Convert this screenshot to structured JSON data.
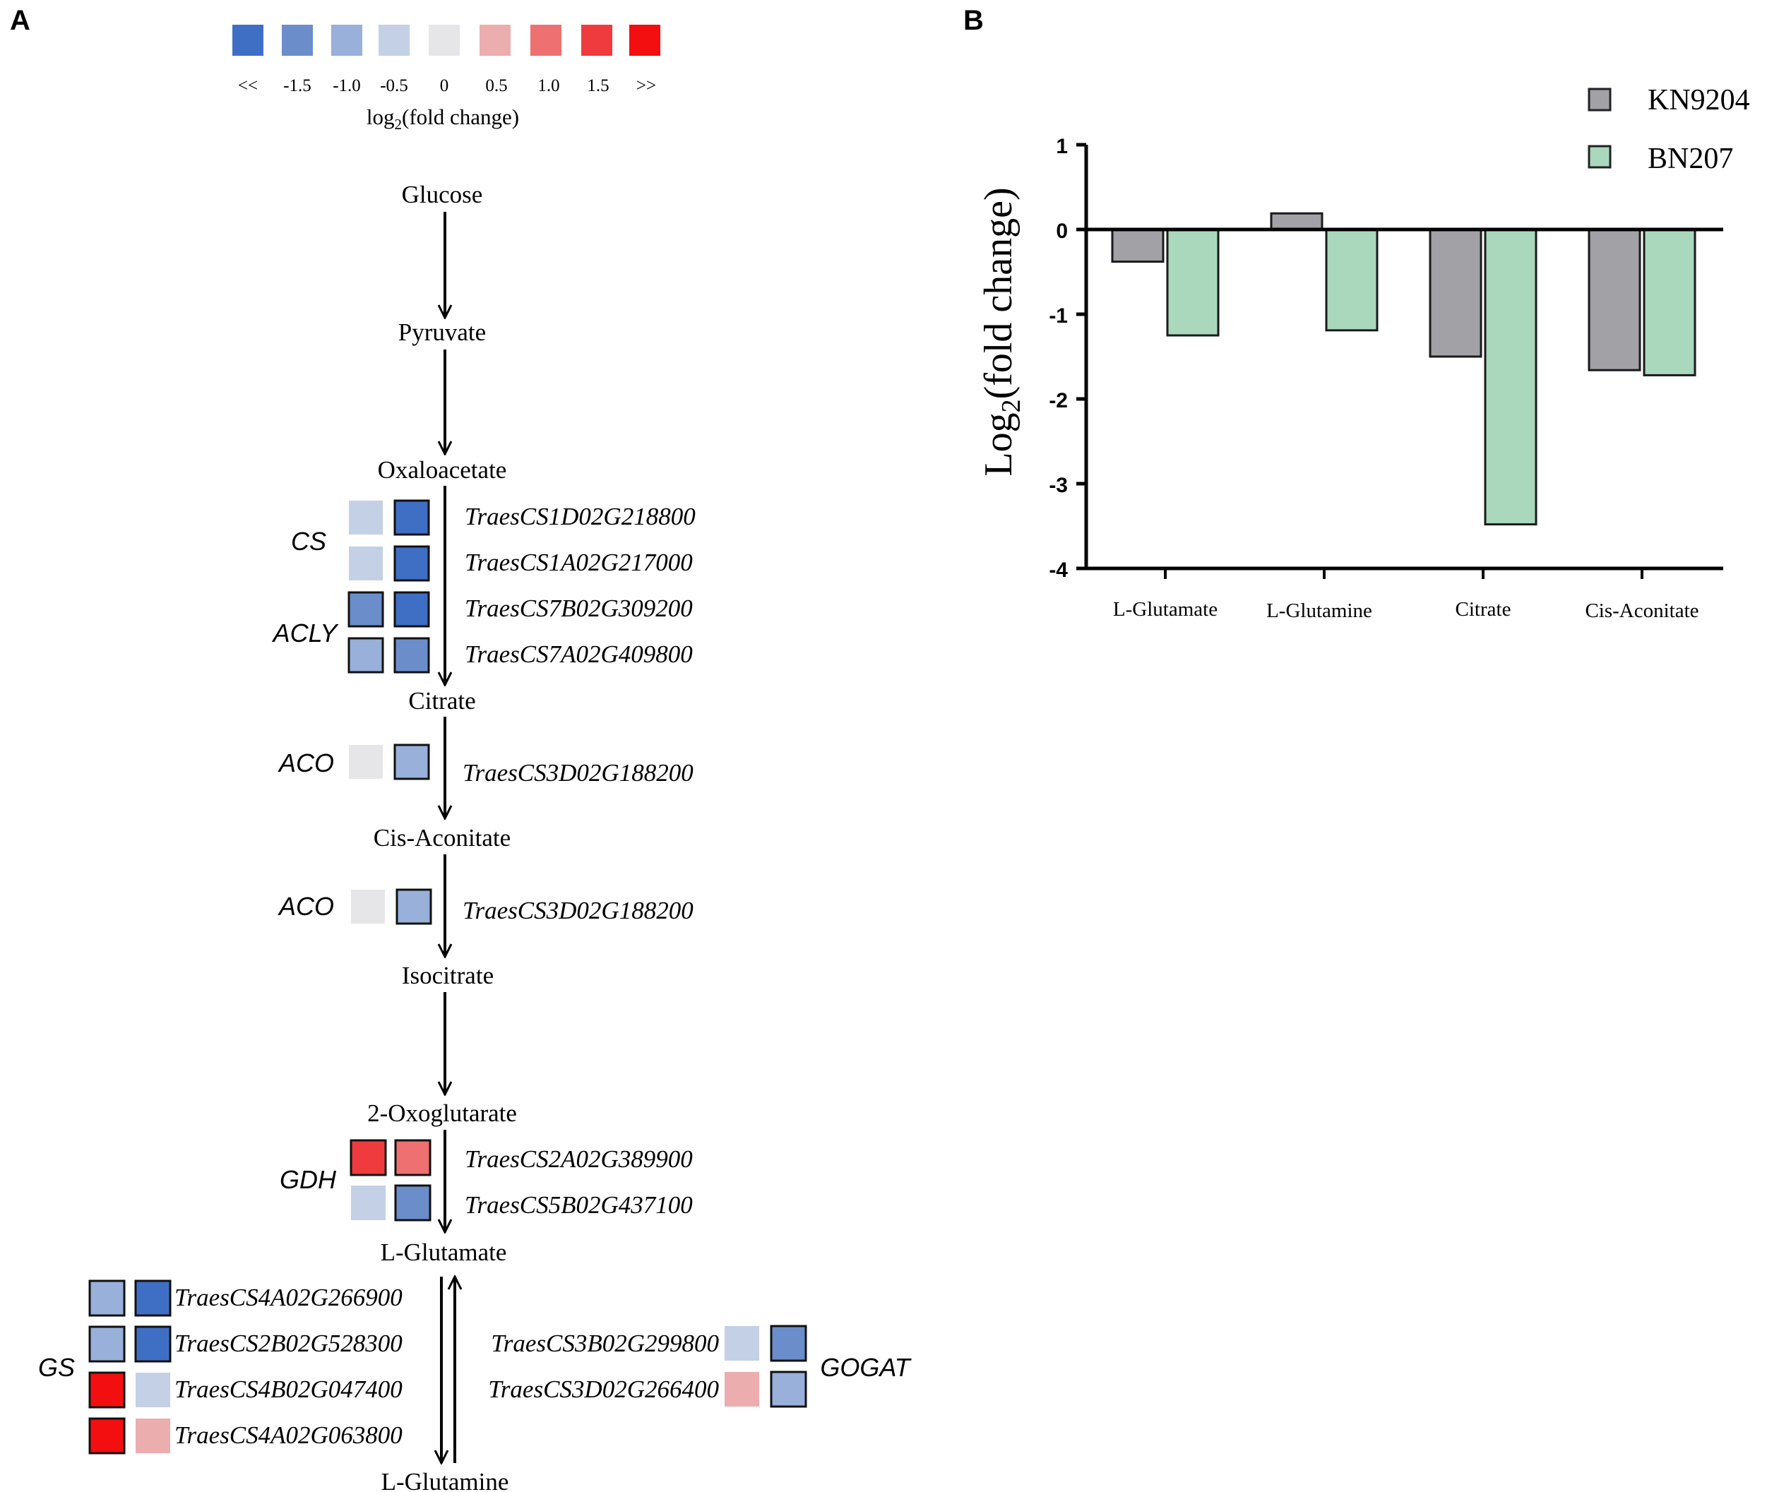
{
  "panels": {
    "a": "A",
    "b": "B"
  },
  "colors": {
    "legend": [
      "#3f6fc4",
      "#6b8ecb",
      "#98b0da",
      "#c4d0e6",
      "#e6e6e8",
      "#ecadae",
      "#ee7070",
      "#ef3b3e",
      "#f30e10"
    ],
    "kn9204": "#a1a1a6",
    "bn207": "#a9d8bd"
  },
  "scale": {
    "labels": [
      "<<",
      "-1.5",
      "-1.0",
      "-0.5",
      "0",
      "0.5",
      "1.0",
      "1.5",
      ">>"
    ],
    "title_prefix": "log",
    "title_sub": "2",
    "title_suffix": "(fold change)"
  },
  "metabolites": [
    "Glucose",
    "Pyruvate",
    "Oxaloacetate",
    "Citrate",
    "Cis-Aconitate",
    "Isocitrate",
    "2-Oxoglutarate",
    "L-Glutamate",
    "L-Glutamine"
  ],
  "enzymes": [
    "CS",
    "ACLY",
    "ACO",
    "ACO",
    "GDH",
    "GS",
    "GOGAT"
  ],
  "genes": [
    {
      "id": "TraesCS1D02G218800",
      "c1": 3,
      "c2": 0
    },
    {
      "id": "TraesCS1A02G217000",
      "c1": 3,
      "c2": 0
    },
    {
      "id": "TraesCS7B02G309200",
      "c1": 1,
      "c2": 0
    },
    {
      "id": "TraesCS7A02G409800",
      "c1": 2,
      "c2": 1
    },
    {
      "id": "TraesCS3D02G188200",
      "c1": 4,
      "c2": 2
    },
    {
      "id": "TraesCS3D02G188200",
      "c1": 4,
      "c2": 2
    },
    {
      "id": "TraesCS2A02G389900",
      "c1": 7,
      "c2": 6
    },
    {
      "id": "TraesCS5B02G437100",
      "c1": 3,
      "c2": 1
    },
    {
      "id": "TraesCS4A02G266900",
      "c1": 2,
      "c2": 0
    },
    {
      "id": "TraesCS2B02G528300",
      "c1": 2,
      "c2": 0
    },
    {
      "id": "TraesCS4B02G047400",
      "c1": 8,
      "c2": 3
    },
    {
      "id": "TraesCS4A02G063800",
      "c1": 8,
      "c2": 5
    },
    {
      "id": "TraesCS3B02G299800",
      "c1": 3,
      "c2": 1
    },
    {
      "id": "TraesCS3D02G266400",
      "c1": 5,
      "c2": 2
    }
  ],
  "chart_data": {
    "type": "bar",
    "categories": [
      "L-Glutamate",
      "L-Glutamine",
      "Citrate",
      "Cis-Aconitate"
    ],
    "series": [
      {
        "name": "KN9204",
        "values": [
          -0.38,
          0.19,
          -1.5,
          -1.66
        ]
      },
      {
        "name": "BN207",
        "values": [
          -1.25,
          -1.19,
          -3.48,
          -1.72
        ]
      }
    ],
    "title": "",
    "xlabel": "",
    "ylabel_prefix": "Log",
    "ylabel_sub": "2",
    "ylabel_suffix": "(fold change)",
    "ylim": [
      -4,
      1
    ],
    "yticks": [
      "1",
      "0",
      "-1",
      "-2",
      "-3",
      "-4"
    ],
    "legend": "top-right"
  }
}
